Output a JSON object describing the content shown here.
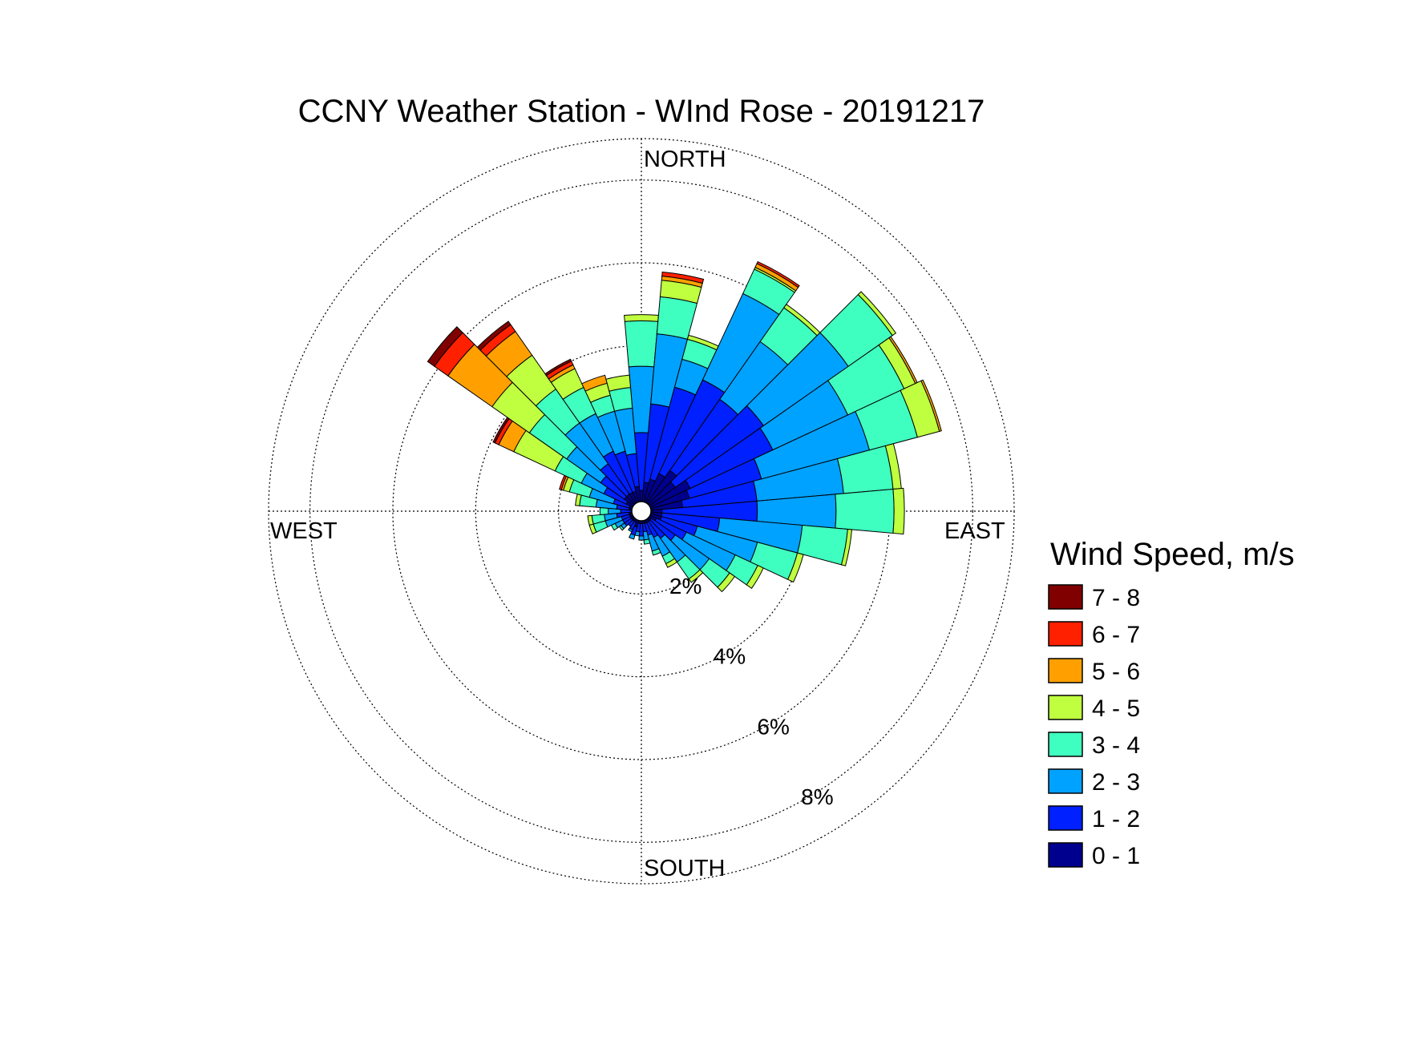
{
  "chart_data": {
    "type": "polar-bar",
    "title": "CCNY Weather Station - WInd Rose - 20191217",
    "radial_unit": "%",
    "radial_max": 9,
    "ring_values": [
      2,
      4,
      6,
      8
    ],
    "ring_labels": [
      "2%",
      "4%",
      "6%",
      "8%"
    ],
    "directions": {
      "north": "NORTH",
      "south": "SOUTH",
      "east": "EAST",
      "west": "WEST"
    },
    "legend": {
      "title": "Wind Speed, m/s",
      "entries": [
        "7 - 8",
        "6 - 7",
        "5 - 6",
        "4 - 5",
        "3 - 4",
        "2 - 3",
        "1 - 2",
        "0 - 1"
      ]
    },
    "colors": {
      "0 - 1": "#00008f",
      "1 - 2": "#0020ff",
      "2 - 3": "#00a2ff",
      "3 - 4": "#3fffc0",
      "4 - 5": "#c0ff3f",
      "5 - 6": "#ffa000",
      "6 - 7": "#ff2000",
      "7 - 8": "#800000"
    },
    "bin_width_deg": 10,
    "bins_order": [
      "0 - 1",
      "1 - 2",
      "2 - 3",
      "3 - 4",
      "4 - 5",
      "5 - 6",
      "6 - 7",
      "7 - 8"
    ],
    "series": [
      {
        "dir": 0,
        "cumulative": [
          0.5,
          1.9,
          3.5,
          4.6,
          4.75
        ]
      },
      {
        "dir": 10,
        "cumulative": [
          0.7,
          2.6,
          4.3,
          5.2,
          5.6,
          5.7,
          5.8
        ]
      },
      {
        "dir": 20,
        "cumulative": [
          0.8,
          3.1,
          3.8,
          4.3,
          4.4
        ]
      },
      {
        "dir": 30,
        "cumulative": [
          1.0,
          3.5,
          5.8,
          6.45,
          6.5,
          6.6,
          6.65
        ]
      },
      {
        "dir": 40,
        "cumulative": [
          1.2,
          3.3,
          5.0,
          6.0,
          6.1
        ]
      },
      {
        "dir": 50,
        "cumulative": [
          1.0,
          3.6,
          6.1,
          7.4,
          7.5
        ]
      },
      {
        "dir": 60,
        "cumulative": [
          1.3,
          3.5,
          5.5,
          7.0,
          7.3,
          7.35
        ]
      },
      {
        "dir": 70,
        "cumulative": [
          1.2,
          3.0,
          5.7,
          6.9,
          7.45,
          7.5
        ]
      },
      {
        "dir": 80,
        "cumulative": [
          1.0,
          2.8,
          4.9,
          6.1,
          6.3
        ]
      },
      {
        "dir": 90,
        "cumulative": [
          0.5,
          2.8,
          4.7,
          6.1,
          6.35
        ]
      },
      {
        "dir": 100,
        "cumulative": [
          0.5,
          1.9,
          3.9,
          5.0,
          5.1
        ]
      },
      {
        "dir": 110,
        "cumulative": [
          0.5,
          1.4,
          2.9,
          3.9,
          4.05
        ]
      },
      {
        "dir": 120,
        "cumulative": [
          0.4,
          1.2,
          2.5,
          3.1,
          3.25
        ]
      },
      {
        "dir": 130,
        "cumulative": [
          0.3,
          1.0,
          2.0,
          2.6,
          2.75
        ]
      },
      {
        "dir": 140,
        "cumulative": [
          0.3,
          0.8,
          1.5,
          2.0,
          2.1
        ]
      },
      {
        "dir": 150,
        "cumulative": [
          0.3,
          0.7,
          1.2,
          1.4,
          1.5
        ]
      },
      {
        "dir": 160,
        "cumulative": [
          0.3,
          0.6,
          1.0,
          1.1
        ]
      },
      {
        "dir": 170,
        "cumulative": [
          0.3,
          0.5,
          0.7,
          0.8
        ]
      },
      {
        "dir": 180,
        "cumulative": [
          0.3,
          0.6,
          0.7
        ]
      },
      {
        "dir": 190,
        "cumulative": [
          0.3,
          0.5,
          0.6
        ]
      },
      {
        "dir": 200,
        "cumulative": [
          0.4,
          0.6,
          0.7
        ]
      },
      {
        "dir": 210,
        "cumulative": [
          0.3,
          0.5,
          0.55
        ]
      },
      {
        "dir": 220,
        "cumulative": [
          0.3,
          0.45
        ]
      },
      {
        "dir": 230,
        "cumulative": [
          0.3,
          0.5,
          0.6,
          0.65
        ]
      },
      {
        "dir": 240,
        "cumulative": [
          0.3,
          0.5,
          0.7,
          0.8
        ]
      },
      {
        "dir": 250,
        "cumulative": [
          0.3,
          0.5,
          0.9,
          1.2,
          1.3
        ]
      },
      {
        "dir": 260,
        "cumulative": [
          0.3,
          0.6,
          0.9,
          1.2,
          1.3
        ]
      },
      {
        "dir": 270,
        "cumulative": [
          0.2,
          0.5,
          0.8,
          1.0
        ]
      },
      {
        "dir": 280,
        "cumulative": [
          0.3,
          0.6,
          1.1,
          1.5,
          1.6
        ]
      },
      {
        "dir": 290,
        "cumulative": [
          0.3,
          0.7,
          1.3,
          1.8,
          1.95,
          2.0,
          2.05
        ]
      },
      {
        "dir": 300,
        "cumulative": [
          0.4,
          1.0,
          1.6,
          2.3,
          3.4,
          3.8,
          3.9,
          3.95
        ]
      },
      {
        "dir": 310,
        "cumulative": [
          0.5,
          1.2,
          2.2,
          3.3,
          4.4,
          5.7,
          6.1,
          6.3
        ]
      },
      {
        "dir": 320,
        "cumulative": [
          0.5,
          1.4,
          2.6,
          3.6,
          4.6,
          5.3,
          5.5,
          5.6
        ]
      },
      {
        "dir": 330,
        "cumulative": [
          0.5,
          1.6,
          2.6,
          3.3,
          3.8,
          3.9,
          4.0,
          4.05
        ]
      },
      {
        "dir": 340,
        "cumulative": [
          0.5,
          1.5,
          2.5,
          2.9,
          3.2,
          3.4
        ]
      },
      {
        "dir": 350,
        "cumulative": [
          0.6,
          1.4,
          2.5,
          3.0,
          3.3
        ]
      }
    ]
  }
}
